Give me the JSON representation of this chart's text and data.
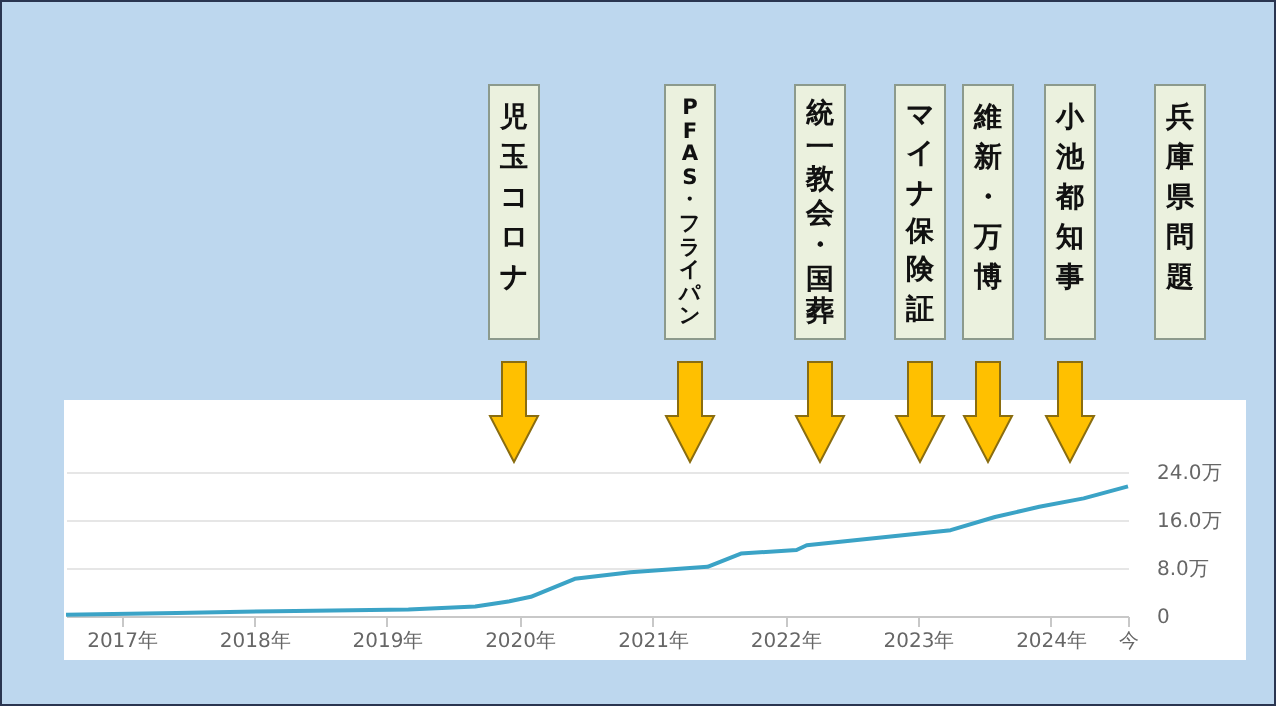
{
  "chart_data": {
    "type": "line",
    "color": "#3ba3c6",
    "x": [
      "2016-08",
      "2017-06",
      "2018-03",
      "2019-03",
      "2019-09",
      "2019-12",
      "2020-02",
      "2020-06",
      "2020-11",
      "2021-06",
      "2021-09",
      "2022-02",
      "2022-03",
      "2023-04",
      "2023-08",
      "2023-12",
      "2024-04",
      "2024-08"
    ],
    "values": [
      0.2,
      0.5,
      0.8,
      1.1,
      1.6,
      2.4,
      3.2,
      6.2,
      7.3,
      8.2,
      10.4,
      11,
      11.8,
      14.3,
      16.5,
      18.2,
      19.6,
      21.6
    ],
    "xlim": [
      "2016-08",
      "2024-08"
    ],
    "xticks": [
      {
        "value": "2017-01",
        "label": "2017年"
      },
      {
        "value": "2018-01",
        "label": "2018年"
      },
      {
        "value": "2019-01",
        "label": "2019年"
      },
      {
        "value": "2020-01",
        "label": "2020年"
      },
      {
        "value": "2021-01",
        "label": "2021年"
      },
      {
        "value": "2022-01",
        "label": "2022年"
      },
      {
        "value": "2023-01",
        "label": "2023年"
      },
      {
        "value": "2024-01",
        "label": "2024年"
      },
      {
        "value": "2024-08",
        "label": "今"
      }
    ],
    "ylim": [
      0,
      24
    ],
    "yticks": [
      0,
      {
        "value": 8,
        "label": "8.0万"
      },
      {
        "value": 16,
        "label": "16.0万"
      },
      {
        "value": 24,
        "label": "24.0万"
      }
    ],
    "grid": "y",
    "annotations": [
      "児玉コロナ",
      "PFAS・フライパン",
      "統一教会・国葬",
      "マイナ保険証",
      "維新・万博",
      "小池都知事",
      "兵庫県問題"
    ]
  }
}
